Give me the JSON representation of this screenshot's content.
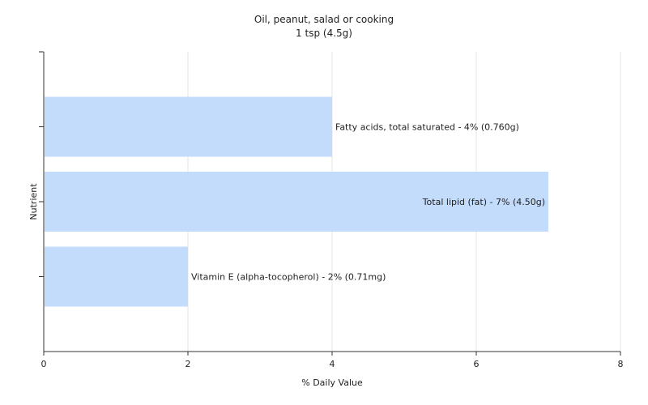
{
  "chart_data": {
    "type": "bar",
    "orientation": "horizontal",
    "title": "Oil, peanut, salad or cooking",
    "subtitle": "1 tsp (4.5g)",
    "xlabel": "% Daily Value",
    "ylabel": "Nutrient",
    "xlim": [
      0,
      8
    ],
    "xticks": [
      0,
      2,
      4,
      6,
      8
    ],
    "grid": "vertical",
    "bar_color": "#c4dcfc",
    "categories": [
      "Fatty acids, total saturated",
      "Total lipid (fat)",
      "Vitamin E (alpha-tocopherol)"
    ],
    "values": [
      4,
      7,
      2
    ],
    "labels": [
      "Fatty acids, total saturated - 4% (0.760g)",
      "Total lipid (fat) - 7% (4.50g)",
      "Vitamin E (alpha-tocopherol) - 2% (0.71mg)"
    ],
    "label_position": [
      "outside",
      "inside",
      "outside"
    ]
  }
}
